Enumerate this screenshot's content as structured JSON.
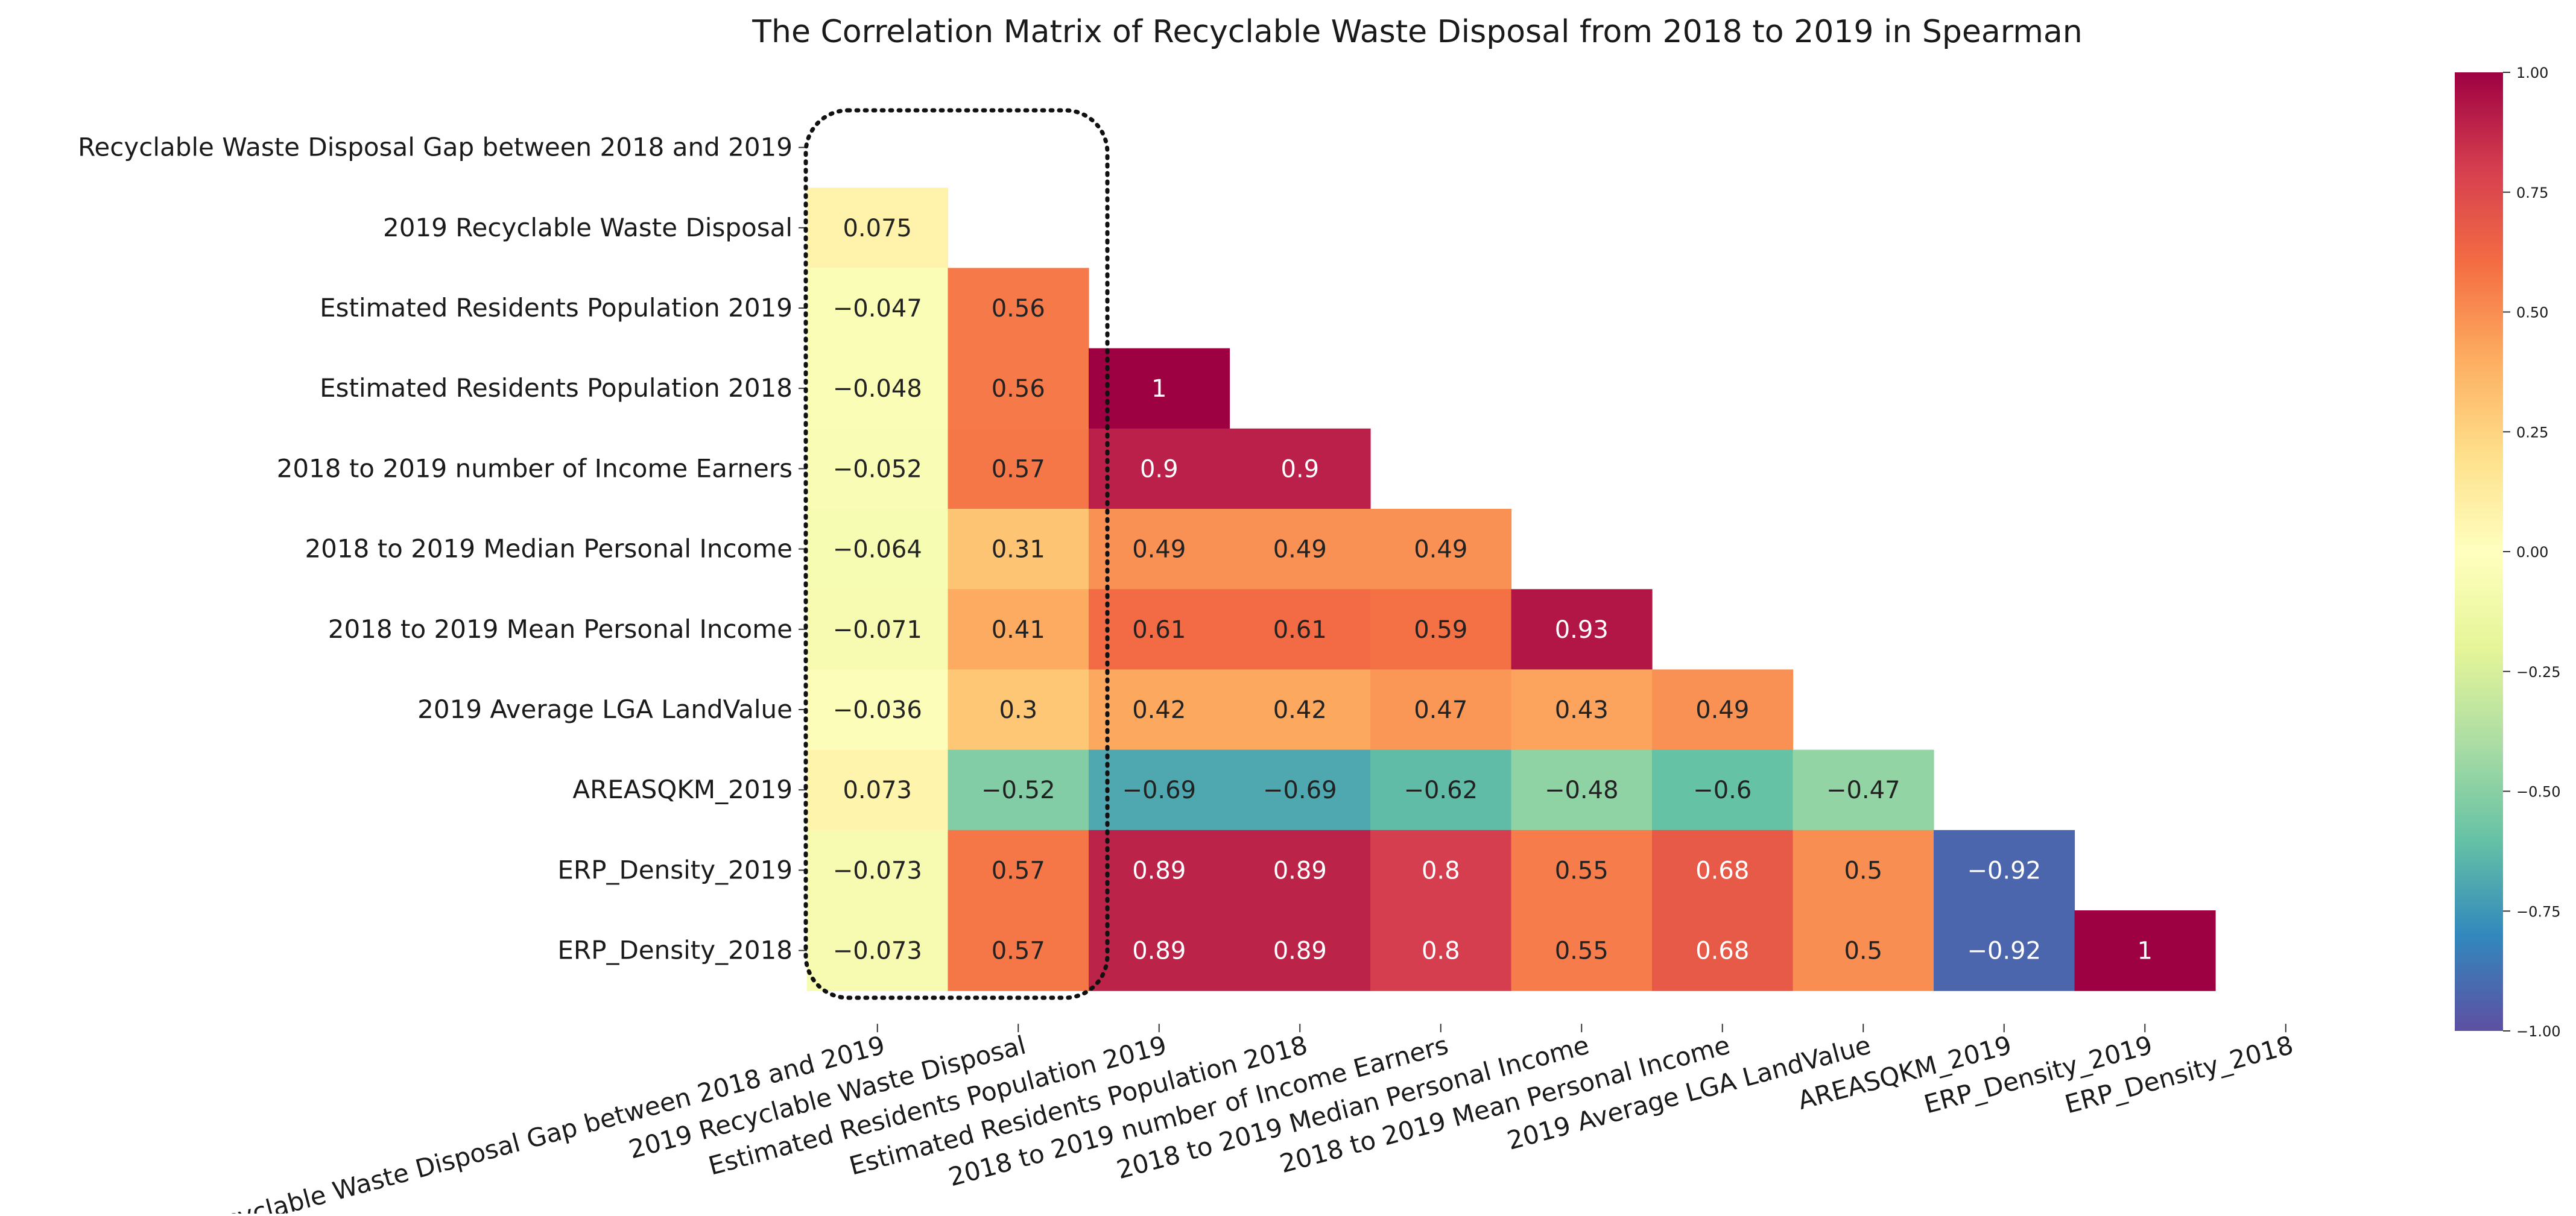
{
  "chart_data": {
    "type": "heatmap",
    "title": "The Correlation Matrix of Recyclable Waste Disposal from 2018 to 2019 in Spearman",
    "labels": [
      "Recyclable Waste Disposal Gap between 2018 and 2019",
      "2019 Recyclable Waste Disposal",
      "Estimated Residents Population 2019",
      "Estimated Residents Population 2018",
      "2018 to 2019 number of Income Earners",
      "2018 to 2019 Median Personal Income",
      "2018 to 2019 Mean Personal Income",
      "2019 Average LGA LandValue",
      "AREASQKM_2019",
      "ERP_Density_2019",
      "ERP_Density_2018"
    ],
    "mask": "upper-triangle-including-diagonal",
    "cells": [
      {
        "row": 1,
        "col": 0,
        "value": 0.075,
        "label": "0.075"
      },
      {
        "row": 2,
        "col": 0,
        "value": -0.047,
        "label": "−0.047"
      },
      {
        "row": 2,
        "col": 1,
        "value": 0.56,
        "label": "0.56"
      },
      {
        "row": 3,
        "col": 0,
        "value": -0.048,
        "label": "−0.048"
      },
      {
        "row": 3,
        "col": 1,
        "value": 0.56,
        "label": "0.56"
      },
      {
        "row": 3,
        "col": 2,
        "value": 1,
        "label": "1"
      },
      {
        "row": 4,
        "col": 0,
        "value": -0.052,
        "label": "−0.052"
      },
      {
        "row": 4,
        "col": 1,
        "value": 0.57,
        "label": "0.57"
      },
      {
        "row": 4,
        "col": 2,
        "value": 0.9,
        "label": "0.9"
      },
      {
        "row": 4,
        "col": 3,
        "value": 0.9,
        "label": "0.9"
      },
      {
        "row": 5,
        "col": 0,
        "value": -0.064,
        "label": "−0.064"
      },
      {
        "row": 5,
        "col": 1,
        "value": 0.31,
        "label": "0.31"
      },
      {
        "row": 5,
        "col": 2,
        "value": 0.49,
        "label": "0.49"
      },
      {
        "row": 5,
        "col": 3,
        "value": 0.49,
        "label": "0.49"
      },
      {
        "row": 5,
        "col": 4,
        "value": 0.49,
        "label": "0.49"
      },
      {
        "row": 6,
        "col": 0,
        "value": -0.071,
        "label": "−0.071"
      },
      {
        "row": 6,
        "col": 1,
        "value": 0.41,
        "label": "0.41"
      },
      {
        "row": 6,
        "col": 2,
        "value": 0.61,
        "label": "0.61"
      },
      {
        "row": 6,
        "col": 3,
        "value": 0.61,
        "label": "0.61"
      },
      {
        "row": 6,
        "col": 4,
        "value": 0.59,
        "label": "0.59"
      },
      {
        "row": 6,
        "col": 5,
        "value": 0.93,
        "label": "0.93"
      },
      {
        "row": 7,
        "col": 0,
        "value": -0.036,
        "label": "−0.036"
      },
      {
        "row": 7,
        "col": 1,
        "value": 0.3,
        "label": "0.3"
      },
      {
        "row": 7,
        "col": 2,
        "value": 0.42,
        "label": "0.42"
      },
      {
        "row": 7,
        "col": 3,
        "value": 0.42,
        "label": "0.42"
      },
      {
        "row": 7,
        "col": 4,
        "value": 0.47,
        "label": "0.47"
      },
      {
        "row": 7,
        "col": 5,
        "value": 0.43,
        "label": "0.43"
      },
      {
        "row": 7,
        "col": 6,
        "value": 0.49,
        "label": "0.49"
      },
      {
        "row": 8,
        "col": 0,
        "value": 0.073,
        "label": "0.073"
      },
      {
        "row": 8,
        "col": 1,
        "value": -0.52,
        "label": "−0.52"
      },
      {
        "row": 8,
        "col": 2,
        "value": -0.69,
        "label": "−0.69"
      },
      {
        "row": 8,
        "col": 3,
        "value": -0.69,
        "label": "−0.69"
      },
      {
        "row": 8,
        "col": 4,
        "value": -0.62,
        "label": "−0.62"
      },
      {
        "row": 8,
        "col": 5,
        "value": -0.48,
        "label": "−0.48"
      },
      {
        "row": 8,
        "col": 6,
        "value": -0.6,
        "label": "−0.6"
      },
      {
        "row": 8,
        "col": 7,
        "value": -0.47,
        "label": "−0.47"
      },
      {
        "row": 9,
        "col": 0,
        "value": -0.073,
        "label": "−0.073"
      },
      {
        "row": 9,
        "col": 1,
        "value": 0.57,
        "label": "0.57"
      },
      {
        "row": 9,
        "col": 2,
        "value": 0.89,
        "label": "0.89"
      },
      {
        "row": 9,
        "col": 3,
        "value": 0.89,
        "label": "0.89"
      },
      {
        "row": 9,
        "col": 4,
        "value": 0.8,
        "label": "0.8"
      },
      {
        "row": 9,
        "col": 5,
        "value": 0.55,
        "label": "0.55"
      },
      {
        "row": 9,
        "col": 6,
        "value": 0.68,
        "label": "0.68"
      },
      {
        "row": 9,
        "col": 7,
        "value": 0.5,
        "label": "0.5"
      },
      {
        "row": 9,
        "col": 8,
        "value": -0.92,
        "label": "−0.92"
      },
      {
        "row": 10,
        "col": 0,
        "value": -0.073,
        "label": "−0.073"
      },
      {
        "row": 10,
        "col": 1,
        "value": 0.57,
        "label": "0.57"
      },
      {
        "row": 10,
        "col": 2,
        "value": 0.89,
        "label": "0.89"
      },
      {
        "row": 10,
        "col": 3,
        "value": 0.89,
        "label": "0.89"
      },
      {
        "row": 10,
        "col": 4,
        "value": 0.8,
        "label": "0.8"
      },
      {
        "row": 10,
        "col": 5,
        "value": 0.55,
        "label": "0.55"
      },
      {
        "row": 10,
        "col": 6,
        "value": 0.68,
        "label": "0.68"
      },
      {
        "row": 10,
        "col": 7,
        "value": 0.5,
        "label": "0.5"
      },
      {
        "row": 10,
        "col": 8,
        "value": -0.92,
        "label": "−0.92"
      },
      {
        "row": 10,
        "col": 9,
        "value": 1,
        "label": "1"
      }
    ],
    "colorbar": {
      "range": [
        -1,
        1
      ],
      "ticks": [
        {
          "value": 1,
          "label": "1.00"
        },
        {
          "value": 0.75,
          "label": "0.75"
        },
        {
          "value": 0.5,
          "label": "0.50"
        },
        {
          "value": 0.25,
          "label": "0.25"
        },
        {
          "value": 0,
          "label": "0.00"
        },
        {
          "value": -0.25,
          "label": "−0.25"
        },
        {
          "value": -0.5,
          "label": "−0.50"
        },
        {
          "value": -0.75,
          "label": "−0.75"
        },
        {
          "value": -1,
          "label": "−1.00"
        }
      ],
      "colormap": "Spectral_r",
      "stops": [
        "#5e4fa2",
        "#3288bd",
        "#66c2a5",
        "#abdda4",
        "#e6f598",
        "#ffffbf",
        "#fee08b",
        "#fdae61",
        "#f46d43",
        "#d53e4f",
        "#9e0142"
      ]
    },
    "annotation": {
      "type": "dotted-rounded-box",
      "highlights_columns": [
        "Recyclable Waste Disposal Gap between 2018 and 2019",
        "2019 Recyclable Waste Disposal"
      ]
    },
    "grid": false,
    "legend": "colorbar-right"
  }
}
